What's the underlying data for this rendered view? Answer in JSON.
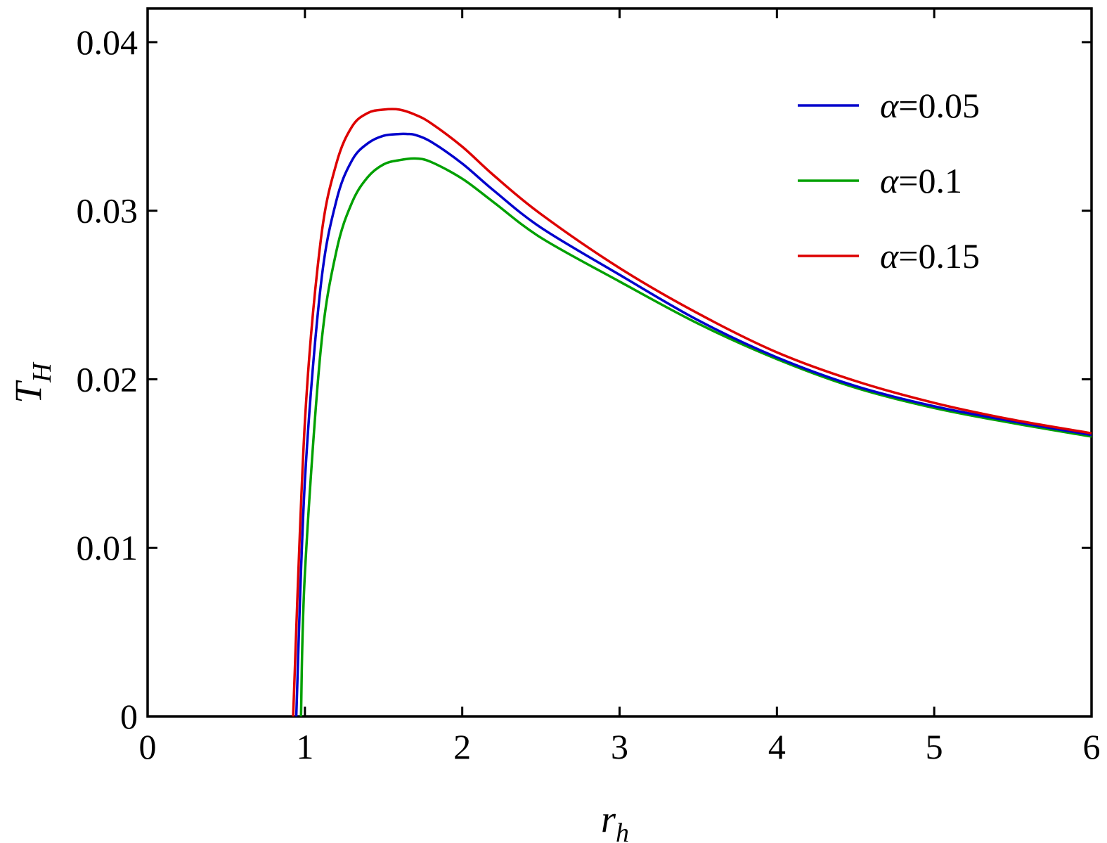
{
  "chart_data": {
    "type": "line",
    "title": "",
    "xlabel": {
      "base": "r",
      "sub": "h"
    },
    "ylabel": {
      "base": "T",
      "sub": "H"
    },
    "xlim": [
      0,
      6
    ],
    "ylim": [
      0,
      0.042
    ],
    "xticks": [
      0,
      1,
      2,
      3,
      4,
      5,
      6
    ],
    "xtick_labels": [
      "0",
      "1",
      "2",
      "3",
      "4",
      "5",
      "6"
    ],
    "yticks": [
      0,
      0.01,
      0.02,
      0.03,
      0.04
    ],
    "ytick_labels": [
      "0",
      "0.01",
      "0.02",
      "0.03",
      "0.04"
    ],
    "grid": false,
    "legend_position": "top-right",
    "series": [
      {
        "name": "α=0.05",
        "legend_symbol": "α",
        "legend_value": "=0.05",
        "color": "#0000cc",
        "x": [
          0.945,
          1.0,
          1.1,
          1.2,
          1.3,
          1.4,
          1.5,
          1.6,
          1.65,
          1.7,
          1.8,
          2.0,
          2.2,
          2.5,
          3.0,
          3.5,
          4.0,
          4.5,
          5.0,
          5.5,
          6.0
        ],
        "y": [
          0,
          0.014,
          0.0255,
          0.0306,
          0.033,
          0.034,
          0.03445,
          0.03455,
          0.03455,
          0.0345,
          0.0341,
          0.0328,
          0.0312,
          0.029,
          0.0262,
          0.0235,
          0.0213,
          0.0196,
          0.0184,
          0.0175,
          0.0167
        ]
      },
      {
        "name": "α=0.1",
        "legend_symbol": "α",
        "legend_value": "=0.1",
        "color": "#00a000",
        "x": [
          0.975,
          1.0,
          1.1,
          1.2,
          1.3,
          1.4,
          1.5,
          1.6,
          1.7,
          1.8,
          2.0,
          2.2,
          2.5,
          3.0,
          3.5,
          4.0,
          4.5,
          5.0,
          5.5,
          6.0
        ],
        "y": [
          0,
          0.0085,
          0.0217,
          0.0276,
          0.0305,
          0.032,
          0.03275,
          0.033,
          0.0331,
          0.0329,
          0.0319,
          0.0305,
          0.0284,
          0.0258,
          0.0233,
          0.0212,
          0.0195,
          0.0183,
          0.0174,
          0.0166
        ]
      },
      {
        "name": "α=0.15",
        "legend_symbol": "α",
        "legend_value": "=0.15",
        "color": "#dd0000",
        "x": [
          0.925,
          1.0,
          1.1,
          1.2,
          1.3,
          1.4,
          1.5,
          1.6,
          1.7,
          1.8,
          2.0,
          2.2,
          2.5,
          3.0,
          3.5,
          4.0,
          4.5,
          5.0,
          5.5,
          6.0
        ],
        "y": [
          0,
          0.0175,
          0.0282,
          0.0328,
          0.035,
          0.0358,
          0.036,
          0.036,
          0.0357,
          0.0352,
          0.0338,
          0.0321,
          0.0298,
          0.0266,
          0.0239,
          0.0216,
          0.0199,
          0.0186,
          0.0176,
          0.0168
        ]
      }
    ]
  }
}
